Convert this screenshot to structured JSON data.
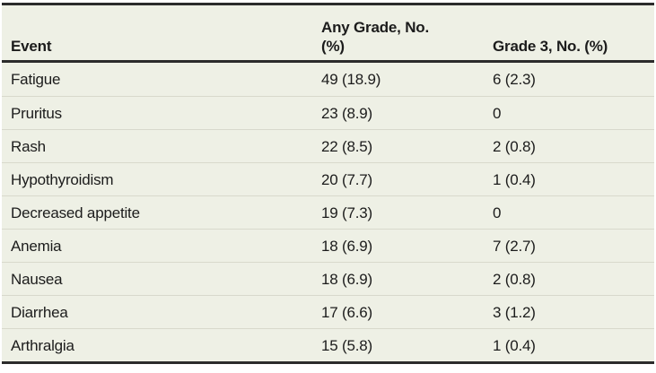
{
  "table": {
    "header": {
      "event_label": "Event",
      "any_grade_line1": "Any Grade, No.",
      "any_grade_line2": "(%)",
      "grade3_label": "Grade 3, No. (%)"
    },
    "rows": [
      {
        "event": "Fatigue",
        "any_grade": "49 (18.9)",
        "grade3": "6 (2.3)"
      },
      {
        "event": "Pruritus",
        "any_grade": "23 (8.9)",
        "grade3": "0"
      },
      {
        "event": "Rash",
        "any_grade": "22 (8.5)",
        "grade3": "2 (0.8)"
      },
      {
        "event": "Hypothyroidism",
        "any_grade": "20 (7.7)",
        "grade3": "1 (0.4)"
      },
      {
        "event": "Decreased appetite",
        "any_grade": "19 (7.3)",
        "grade3": "0"
      },
      {
        "event": "Anemia",
        "any_grade": "18 (6.9)",
        "grade3": "7 (2.7)"
      },
      {
        "event": "Nausea",
        "any_grade": "18 (6.9)",
        "grade3": "2 (0.8)"
      },
      {
        "event": "Diarrhea",
        "any_grade": "17 (6.6)",
        "grade3": "3 (1.2)"
      },
      {
        "event": "Arthralgia",
        "any_grade": "15 (5.8)",
        "grade3": "1 (0.4)"
      }
    ],
    "colors": {
      "table_background": "#eef0e5",
      "rule_dark": "#2b2b2b",
      "rule_light": "#d8d9cc",
      "text": "#1c1c1c"
    }
  }
}
